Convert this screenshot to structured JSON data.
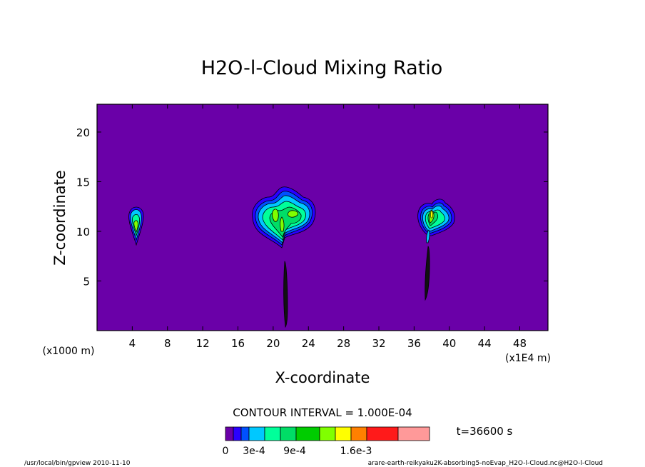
{
  "chart_data": {
    "type": "contour",
    "title": "H2O-l-Cloud Mixing Ratio",
    "xlabel": "X-coordinate",
    "ylabel": "Z-coordinate",
    "x_unit_left": "(x1000 m)",
    "x_unit_right": "(x1E4 m)",
    "xlim": [
      0,
      51.2
    ],
    "ylim": [
      0,
      22.8
    ],
    "xticks": [
      4,
      8,
      12,
      16,
      20,
      24,
      28,
      32,
      36,
      40,
      44,
      48
    ],
    "yticks": [
      5,
      10,
      15,
      20
    ],
    "contour_interval_text": "CONTOUR INTERVAL = 1.000E-04",
    "time_text": "t=36600 s",
    "colorbar": {
      "colors": [
        "#6a00a8",
        "#2a00ff",
        "#0050ff",
        "#00c8ff",
        "#00ff9a",
        "#00dd66",
        "#00cc00",
        "#80ff00",
        "#ffff00",
        "#ff8000",
        "#ff1a1a",
        "#ff9999"
      ],
      "labels": [
        "0",
        "3e-4",
        "9e-4",
        "1.6e-3"
      ]
    },
    "cloud_cells": [
      {
        "x_center": 4.3,
        "z_base": 8.8,
        "z_top": 12.5,
        "max_level": "6e-4"
      },
      {
        "x_center": 21.0,
        "z_base": 0.5,
        "z_top": 14.3,
        "max_level": "6e-4"
      },
      {
        "x_center": 37.8,
        "z_base": 3.0,
        "z_top": 13.3,
        "max_level": "8e-4"
      }
    ],
    "grid": false
  },
  "footer": {
    "left": "/usr/local/bin/gpview  2010-11-10",
    "right": "arare-earth-reikyaku2K-absorbing5-noEvap_H2O-l-Cloud.nc@H2O-l-Cloud"
  }
}
